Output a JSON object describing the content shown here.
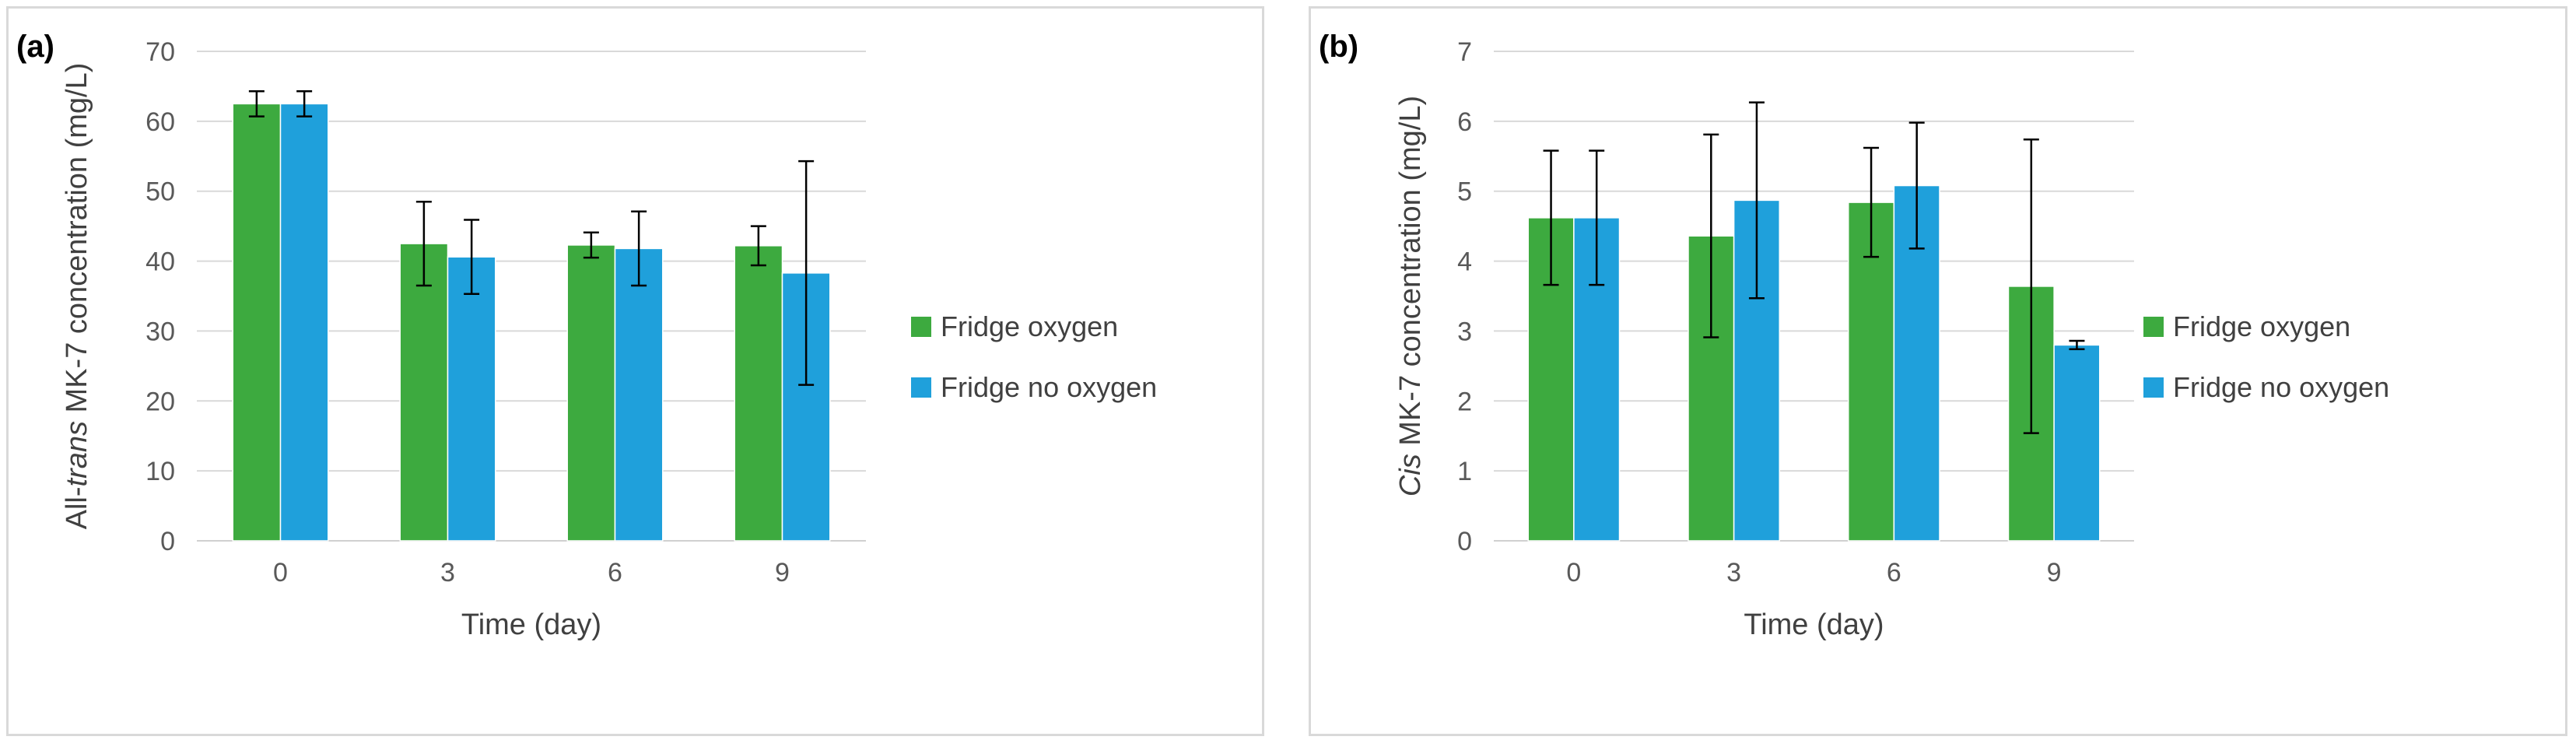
{
  "chart_data": [
    {
      "type": "bar",
      "panel_label": "(a)",
      "title": "",
      "xlabel": "Time (day)",
      "ylabel_parts": [
        "All-",
        "trans",
        " MK-7 concentration (mg/L)"
      ],
      "categories": [
        "0",
        "3",
        "6",
        "9"
      ],
      "ylim": [
        0,
        70
      ],
      "yticks": [
        0,
        10,
        20,
        30,
        40,
        50,
        60,
        70
      ],
      "grid": true,
      "legend_position": "right",
      "series": [
        {
          "name": "Fridge oxygen",
          "color": "#3DAA3F",
          "values": [
            62.5,
            42.5,
            42.3,
            42.2
          ],
          "errors": [
            1.8,
            6.0,
            1.8,
            2.8
          ]
        },
        {
          "name": "Fridge no oxygen",
          "color": "#1FA0DB",
          "values": [
            62.5,
            40.6,
            41.8,
            38.3
          ],
          "errors": [
            1.8,
            5.3,
            5.3,
            16.0
          ]
        }
      ]
    },
    {
      "type": "bar",
      "panel_label": "(b)",
      "title": "",
      "xlabel": "Time (day)",
      "ylabel_parts": [
        "Cis",
        " MK-7 concentration (mg/L)"
      ],
      "categories": [
        "0",
        "3",
        "6",
        "9"
      ],
      "ylim": [
        0,
        7
      ],
      "yticks": [
        0,
        1,
        2,
        3,
        4,
        5,
        6,
        7
      ],
      "grid": true,
      "legend_position": "right",
      "series": [
        {
          "name": "Fridge oxygen",
          "color": "#3DAA3F",
          "values": [
            4.62,
            4.36,
            4.84,
            3.64
          ],
          "errors": [
            0.96,
            1.45,
            0.78,
            2.1
          ]
        },
        {
          "name": "Fridge no oxygen",
          "color": "#1FA0DB",
          "values": [
            4.62,
            4.87,
            5.08,
            2.8
          ],
          "errors": [
            0.96,
            1.4,
            0.9,
            0.06
          ]
        }
      ]
    }
  ]
}
